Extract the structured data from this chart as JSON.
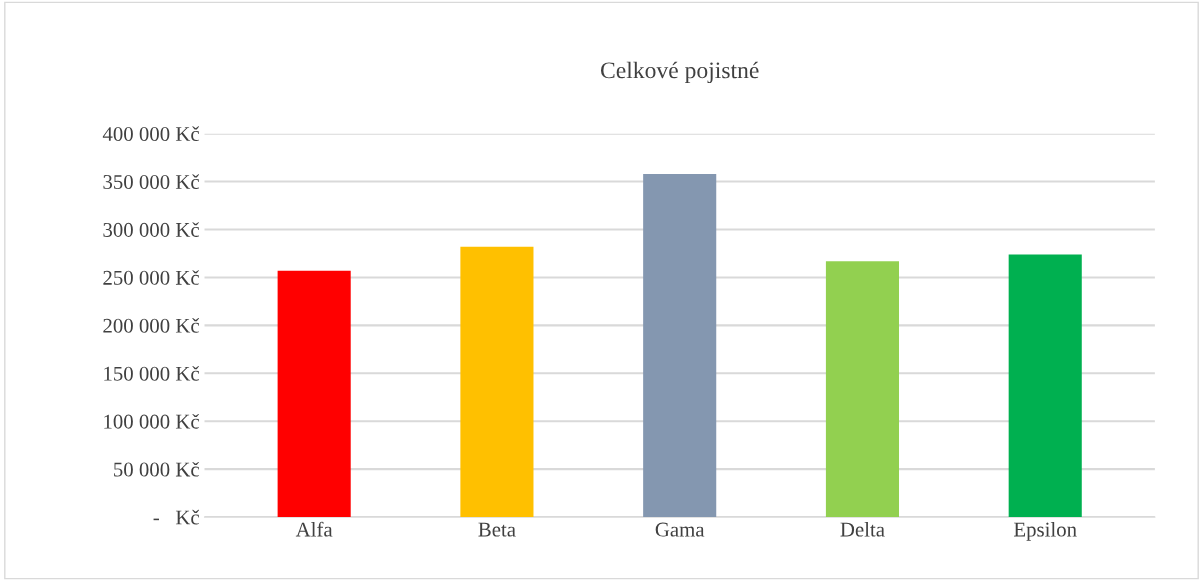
{
  "chart_data": {
    "type": "bar",
    "title": "Celkové pojistné",
    "categories": [
      "Alfa",
      "Beta",
      "Gama",
      "Delta",
      "Epsilon"
    ],
    "values": [
      257000,
      282000,
      358000,
      267000,
      274000
    ],
    "colors": [
      "#ff0000",
      "#ffc000",
      "#8497b0",
      "#92d050",
      "#00b050"
    ],
    "ylim": [
      0,
      400000
    ],
    "yticks": [
      {
        "value": 0,
        "label": "-   Kč"
      },
      {
        "value": 50000,
        "label": "50 000 Kč"
      },
      {
        "value": 100000,
        "label": "100 000 Kč"
      },
      {
        "value": 150000,
        "label": "150 000 Kč"
      },
      {
        "value": 200000,
        "label": "200 000 Kč"
      },
      {
        "value": 250000,
        "label": "250 000 Kč"
      },
      {
        "value": 300000,
        "label": "300 000 Kč"
      },
      {
        "value": 350000,
        "label": "350 000 Kč"
      },
      {
        "value": 400000,
        "label": "400 000 Kč"
      }
    ],
    "grid": "y"
  }
}
